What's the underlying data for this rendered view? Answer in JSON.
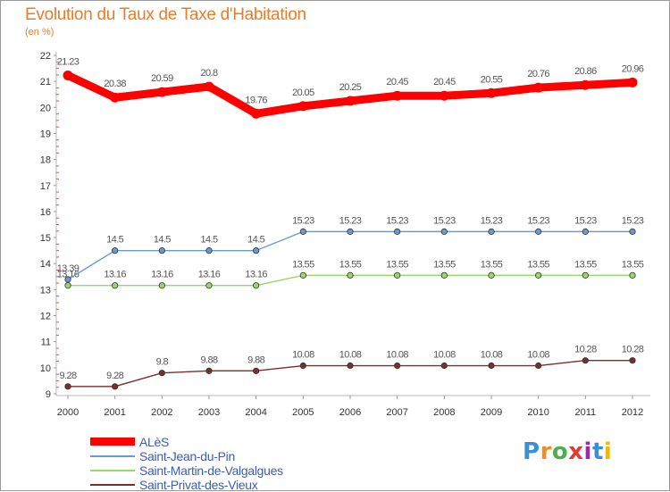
{
  "chart_data": {
    "type": "line",
    "title": "Evolution du Taux de Taxe d'Habitation",
    "ylabel": "(en %)",
    "xlabel": "",
    "categories": [
      "2000",
      "2001",
      "2002",
      "2003",
      "2004",
      "2005",
      "2006",
      "2007",
      "2008",
      "2009",
      "2010",
      "2011",
      "2012"
    ],
    "ylim": [
      9,
      22
    ],
    "yticks": [
      9,
      10,
      11,
      12,
      13,
      14,
      15,
      16,
      17,
      18,
      19,
      20,
      21,
      22
    ],
    "grid": false,
    "legend_position": "bottom-left",
    "series": [
      {
        "name": "ALèS",
        "color": "#ff0000",
        "values": [
          21.23,
          20.38,
          20.59,
          20.8,
          19.76,
          20.05,
          20.25,
          20.45,
          20.45,
          20.55,
          20.76,
          20.86,
          20.96
        ],
        "labels": [
          "21.23",
          "20.38",
          "20.59",
          "20.8",
          "19.76",
          "20.05",
          "20.25",
          "20.45",
          "20.45",
          "20.55",
          "20.76",
          "20.86",
          "20.96"
        ]
      },
      {
        "name": "Saint-Jean-du-Pin",
        "color": "#6a9bcf",
        "values": [
          13.39,
          14.5,
          14.5,
          14.5,
          14.5,
          15.23,
          15.23,
          15.23,
          15.23,
          15.23,
          15.23,
          15.23,
          15.23
        ],
        "labels": [
          "13.39",
          "14.5",
          "14.5",
          "14.5",
          "14.5",
          "15.23",
          "15.23",
          "15.23",
          "15.23",
          "15.23",
          "15.23",
          "15.23",
          "15.23"
        ]
      },
      {
        "name": "Saint-Martin-de-Valgalgues",
        "color": "#98d868",
        "values": [
          13.16,
          13.16,
          13.16,
          13.16,
          13.16,
          13.55,
          13.55,
          13.55,
          13.55,
          13.55,
          13.55,
          13.55,
          13.55
        ],
        "labels": [
          "13.16",
          "13.16",
          "13.16",
          "13.16",
          "13.16",
          "13.55",
          "13.55",
          "13.55",
          "13.55",
          "13.55",
          "13.55",
          "13.55",
          "13.55"
        ]
      },
      {
        "name": "Saint-Privat-des-Vieux",
        "color": "#7a2e2e",
        "values": [
          9.28,
          9.28,
          9.8,
          9.88,
          9.88,
          10.08,
          10.08,
          10.08,
          10.08,
          10.08,
          10.08,
          10.28,
          10.28
        ],
        "labels": [
          "9.28",
          "9.28",
          "9.8",
          "9.88",
          "9.88",
          "10.08",
          "10.08",
          "10.08",
          "10.08",
          "10.08",
          "10.08",
          "10.28",
          "10.28"
        ]
      }
    ]
  },
  "logo": {
    "letters": [
      "P",
      "r",
      "o",
      "x",
      "i",
      "t",
      "i"
    ],
    "colors": [
      "#3b8fd6",
      "#f28c28",
      "#4caf50",
      "#e53935",
      "#9c27b0",
      "#3b8fd6",
      "#f2b705"
    ]
  }
}
